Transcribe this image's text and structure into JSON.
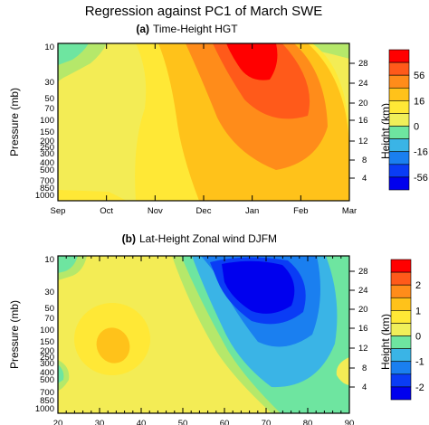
{
  "figure": {
    "title": "Regression against PC1 of March SWE"
  },
  "chart_data": [
    {
      "type": "heatmap",
      "panel_label": "(a)",
      "title": "Time-Height HGT",
      "xlabel": "",
      "ylabel": "Pressure (mb)",
      "ylabel_right": "Height (km)",
      "x_ticks": [
        "Sep",
        "Oct",
        "Nov",
        "Dec",
        "Jan",
        "Feb",
        "Mar"
      ],
      "y_ticks": [
        10,
        30,
        50,
        70,
        100,
        150,
        200,
        250,
        300,
        400,
        500,
        700,
        850,
        1000
      ],
      "y_tick_labels_shown": [
        "10",
        "30",
        "50",
        "70",
        "100",
        "150",
        "200",
        "250",
        "300",
        "400",
        "500",
        "700",
        "850",
        "1000"
      ],
      "y_scale": "log-pressure",
      "right_ticks": [
        "28",
        "24",
        "20",
        "16",
        "12",
        "8",
        "4"
      ],
      "colorbar": {
        "labels": [
          "56",
          "16",
          "0",
          "-16",
          "-56"
        ],
        "colors": [
          "#ff0000",
          "#ff5a1a",
          "#ff8c1a",
          "#ffc21a",
          "#ffe836",
          "#f0ef5a",
          "#6ee5a0",
          "#3ab4e6",
          "#1a7ff0",
          "#0a3cf5",
          "#0000ee"
        ]
      },
      "y_range_mb": [
        1000,
        10
      ],
      "features": [
        {
          "name": "max",
          "x_month": "Jan",
          "pressure_mb": 20,
          "value": 56
        },
        {
          "name": "min",
          "x_month": "Sep",
          "pressure_mb": 30,
          "value": -16
        }
      ]
    },
    {
      "type": "heatmap",
      "panel_label": "(b)",
      "title": "Lat-Height Zonal wind DJFM",
      "xlabel": "",
      "ylabel": "Pressure (mb)",
      "ylabel_right": "Height (km)",
      "x_ticks": [
        "20",
        "30",
        "40",
        "50",
        "60",
        "70",
        "80",
        "90"
      ],
      "y_tick_labels_shown": [
        "10",
        "30",
        "50",
        "70",
        "100",
        "150",
        "200",
        "250",
        "300",
        "400",
        "500",
        "700",
        "850",
        "1000"
      ],
      "y_scale": "log-pressure",
      "right_ticks": [
        "28",
        "24",
        "20",
        "16",
        "12",
        "8",
        "4"
      ],
      "colorbar": {
        "labels": [
          "2",
          "1",
          "0",
          "-1",
          "-2"
        ],
        "colors": [
          "#ff0000",
          "#ff5a1a",
          "#ff8c1a",
          "#ffc21a",
          "#ffe836",
          "#f0ef5a",
          "#6ee5a0",
          "#3ab4e6",
          "#1a7ff0",
          "#0a3cf5",
          "#0000ee"
        ]
      },
      "y_range_mb": [
        1000,
        10
      ],
      "features": [
        {
          "name": "min",
          "lat": 68,
          "pressure_mb": 25,
          "value": -2
        },
        {
          "name": "max",
          "lat": 33,
          "pressure_mb": 170,
          "value": 1
        }
      ]
    }
  ]
}
